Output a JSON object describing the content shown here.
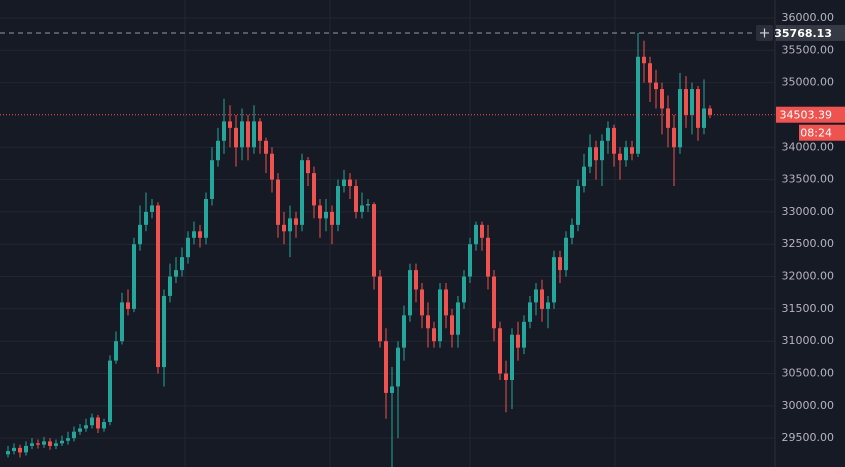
{
  "chart_data": {
    "type": "candlestick",
    "up_color": "#26a69a",
    "down_color": "#ef5350",
    "grid": true,
    "ylim": [
      29054,
      36278
    ],
    "yticks": [
      {
        "value": 29500,
        "label": "29500.00"
      },
      {
        "value": 30000,
        "label": "30000.00"
      },
      {
        "value": 30500,
        "label": "30500.00"
      },
      {
        "value": 31000,
        "label": "31000.00"
      },
      {
        "value": 31500,
        "label": "31500.00"
      },
      {
        "value": 32000,
        "label": "32000.00"
      },
      {
        "value": 32500,
        "label": "32500.00"
      },
      {
        "value": 33000,
        "label": "33000.00"
      },
      {
        "value": 33500,
        "label": "33500.00"
      },
      {
        "value": 34000,
        "label": "34000.00"
      },
      {
        "value": 35000,
        "label": "35000.00"
      },
      {
        "value": 35500,
        "label": "35500.00"
      },
      {
        "value": 36000,
        "label": "36000.00"
      }
    ],
    "crosshair": {
      "value": 35768.13,
      "label": "35768.13"
    },
    "price_line": {
      "value": 34503.39,
      "label": "34503.39"
    },
    "countdown": "08:24",
    "open": [
      29250,
      29300,
      29350,
      29280,
      29380,
      29420,
      29400,
      29450,
      29380,
      29420,
      29460,
      29500,
      29600,
      29650,
      29700,
      29820,
      29650,
      29750,
      30700,
      31000,
      31600,
      31500,
      32500,
      32800,
      33000,
      33100,
      30600,
      31700,
      32000,
      32100,
      32300,
      32600,
      32700,
      32600,
      33200,
      33800,
      34100,
      34400,
      34300,
      34000,
      34400,
      34000,
      34400,
      34100,
      33900,
      33500,
      32800,
      32700,
      32900,
      32800,
      33800,
      33600,
      33100,
      32900,
      33000,
      32800,
      33400,
      33500,
      33400,
      33000,
      33100,
      33120,
      32000,
      31000,
      30200,
      30300,
      30900,
      31400,
      32100,
      31800,
      31400,
      31200,
      31000,
      31800,
      31400,
      31100,
      31600,
      32000,
      32500,
      32800,
      32600,
      32000,
      31200,
      30500,
      30400,
      31100,
      30900,
      31300,
      31600,
      31800,
      31500,
      31600,
      32300,
      32100,
      32600,
      32800,
      33400,
      33700,
      34000,
      33800,
      34100,
      34300,
      33900,
      33800,
      34000,
      33900,
      35400,
      35300,
      35000,
      34900,
      34600,
      34300,
      34000,
      34900,
      34500,
      34900,
      34300,
      34600
    ],
    "high": [
      29380,
      29420,
      29400,
      29450,
      29500,
      29480,
      29520,
      29500,
      29480,
      29540,
      29600,
      29680,
      29720,
      29800,
      29880,
      29860,
      29800,
      30780,
      31150,
      31750,
      31800,
      32600,
      33100,
      33300,
      33200,
      33150,
      31800,
      32200,
      32300,
      32450,
      32700,
      32850,
      32800,
      33300,
      34000,
      34300,
      34750,
      34650,
      34500,
      34600,
      34500,
      34650,
      34450,
      34150,
      34000,
      33600,
      33000,
      33100,
      33000,
      33900,
      33850,
      33700,
      33200,
      33200,
      33100,
      33500,
      33650,
      33600,
      33500,
      33300,
      33200,
      33150,
      32100,
      31200,
      30600,
      31000,
      31550,
      32200,
      32200,
      31900,
      31600,
      31300,
      31900,
      31900,
      31500,
      31700,
      32100,
      32600,
      32850,
      32850,
      32800,
      32100,
      31300,
      30700,
      31200,
      31300,
      31400,
      31700,
      31900,
      31950,
      31700,
      32400,
      32400,
      32700,
      32900,
      33500,
      33900,
      34200,
      34100,
      34200,
      34400,
      34350,
      34000,
      34100,
      34100,
      35768.13,
      35650,
      35400,
      35200,
      35000,
      34800,
      34500,
      35150,
      35100,
      35000,
      34950,
      35050,
      34650
    ],
    "low": [
      29200,
      29250,
      29200,
      29230,
      29330,
      29340,
      29350,
      29320,
      29330,
      29380,
      29400,
      29450,
      29550,
      29600,
      29650,
      29580,
      29600,
      29700,
      30650,
      30950,
      31400,
      31450,
      32400,
      32700,
      32900,
      30500,
      30300,
      31600,
      31900,
      32000,
      32200,
      32500,
      32450,
      32500,
      33100,
      33700,
      33900,
      34000,
      33700,
      33800,
      33800,
      33900,
      33900,
      33600,
      33300,
      32600,
      32500,
      32300,
      32600,
      32700,
      33400,
      32900,
      32600,
      32700,
      32500,
      32700,
      33300,
      33200,
      32900,
      32900,
      33000,
      31800,
      30900,
      29800,
      29050,
      29500,
      30700,
      31300,
      31600,
      31200,
      30900,
      30900,
      30900,
      31200,
      30900,
      30900,
      31500,
      31900,
      32400,
      32400,
      31800,
      31000,
      30400,
      29900,
      29950,
      30700,
      30800,
      31200,
      31400,
      31300,
      31200,
      31500,
      31900,
      32000,
      32500,
      32700,
      33300,
      33600,
      33500,
      33400,
      33900,
      33700,
      33500,
      33700,
      33800,
      33850,
      35000,
      34700,
      34600,
      34200,
      34000,
      33400,
      33900,
      34300,
      34200,
      34100,
      34200,
      34450
    ],
    "close": [
      29300,
      29350,
      29280,
      29380,
      29420,
      29400,
      29450,
      29380,
      29420,
      29460,
      29500,
      29600,
      29650,
      29700,
      29820,
      29650,
      29750,
      30700,
      31000,
      31600,
      31500,
      32500,
      32800,
      33000,
      33100,
      30600,
      31700,
      32000,
      32100,
      32300,
      32600,
      32700,
      32600,
      33200,
      33800,
      34100,
      34400,
      34300,
      34000,
      34400,
      34000,
      34400,
      34100,
      33900,
      33500,
      32800,
      32700,
      32900,
      32800,
      33800,
      33600,
      33100,
      32900,
      33000,
      32800,
      33400,
      33500,
      33400,
      33000,
      33100,
      33120,
      32000,
      31000,
      30200,
      30300,
      30900,
      31400,
      32100,
      31800,
      31400,
      31200,
      31000,
      31800,
      31400,
      31100,
      31600,
      32000,
      32500,
      32800,
      32600,
      32000,
      31200,
      30500,
      30400,
      31100,
      30900,
      31300,
      31600,
      31800,
      31500,
      31600,
      32300,
      32100,
      32600,
      32800,
      33400,
      33700,
      34000,
      33800,
      34100,
      34300,
      33900,
      33800,
      34000,
      33900,
      35400,
      35300,
      35000,
      34900,
      34600,
      34300,
      34000,
      34900,
      34500,
      34900,
      34300,
      34600,
      34503.39
    ]
  }
}
